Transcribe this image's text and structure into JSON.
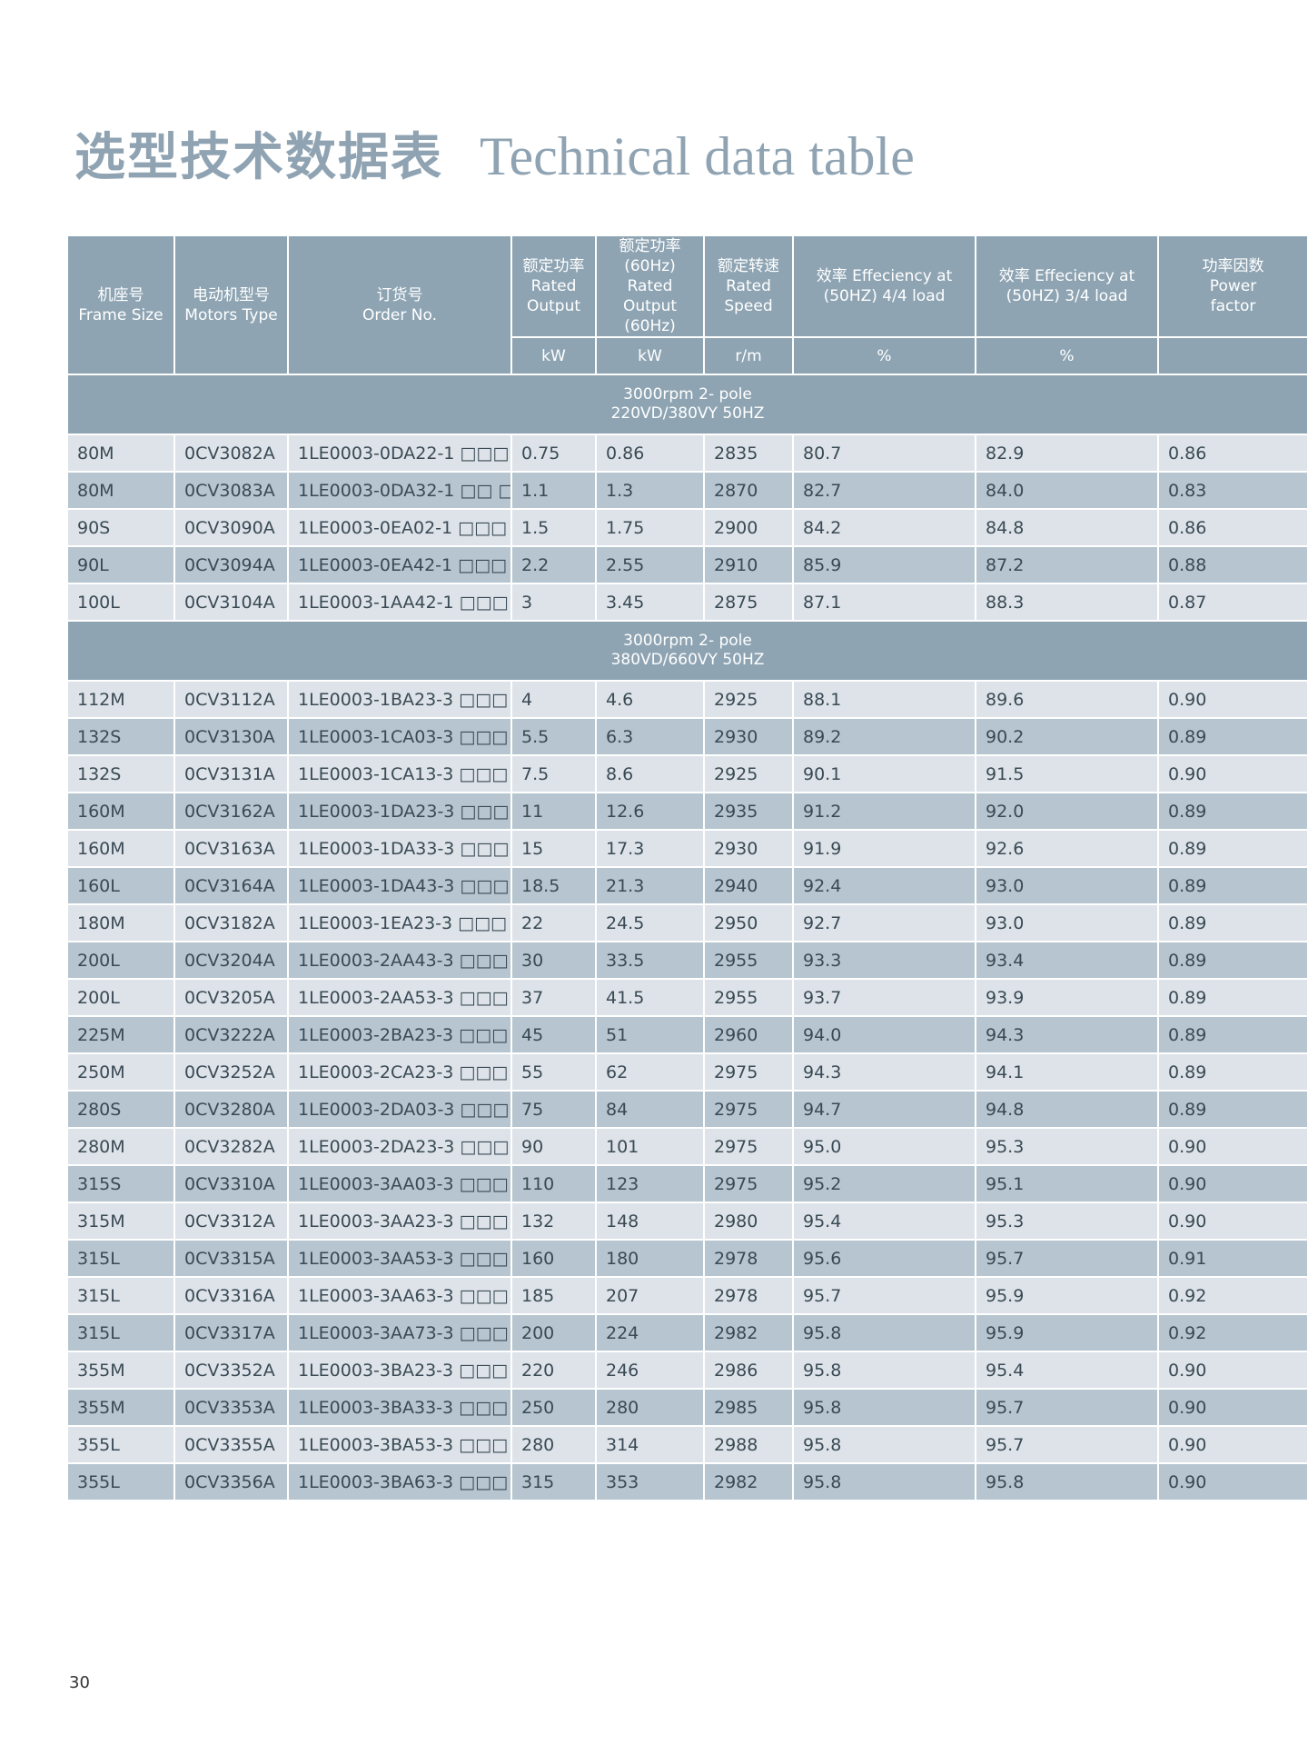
{
  "title": {
    "zh": "选型技术数据表",
    "en": "Technical data table"
  },
  "table": {
    "header": [
      "机座号\nFrame Size",
      "电动机型号\nMotors Type",
      "订货号\nOrder No.",
      "额定功率\nRated\nOutput",
      "额定功率\n(60Hz)\nRated Output\n(60Hz)",
      "额定转速\nRated\nSpeed",
      "效率 Effeciency at\n(50HZ) 4/4 load",
      "效率 Effeciency at\n(50HZ) 3/4 load",
      "功率因数\nPower\nfactor"
    ],
    "units": [
      "kW",
      "kW",
      "r/m",
      "%",
      "%"
    ],
    "sections": [
      {
        "title": "3000rpm 2- pole\n220VD/380VY  50HZ",
        "rows": [
          [
            "80M",
            "0CV3082A",
            "1LE0003-0DA22-1 □□□",
            "0.75",
            "0.86",
            "2835",
            "80.7",
            "82.9",
            "0.86"
          ],
          [
            "80M",
            "0CV3083A",
            "1LE0003-0DA32-1 □□ □",
            "1.1",
            "1.3",
            "2870",
            "82.7",
            "84.0",
            "0.83"
          ],
          [
            "90S",
            "0CV3090A",
            "1LE0003-0EA02-1 □□□",
            "1.5",
            "1.75",
            "2900",
            "84.2",
            "84.8",
            "0.86"
          ],
          [
            "90L",
            "0CV3094A",
            "1LE0003-0EA42-1 □□□",
            "2.2",
            "2.55",
            "2910",
            "85.9",
            "87.2",
            "0.88"
          ],
          [
            "100L",
            "0CV3104A",
            "1LE0003-1AA42-1 □□□",
            "3",
            "3.45",
            "2875",
            "87.1",
            "88.3",
            "0.87"
          ]
        ]
      },
      {
        "title": "3000rpm 2- pole\n380VD/660VY  50HZ",
        "rows": [
          [
            "112M",
            "0CV3112A",
            "1LE0003-1BA23-3 □□□",
            "4",
            "4.6",
            "2925",
            "88.1",
            "89.6",
            "0.90"
          ],
          [
            "132S",
            "0CV3130A",
            "1LE0003-1CA03-3 □□□",
            "5.5",
            "6.3",
            "2930",
            "89.2",
            "90.2",
            "0.89"
          ],
          [
            "132S",
            "0CV3131A",
            "1LE0003-1CA13-3 □□□",
            "7.5",
            "8.6",
            "2925",
            "90.1",
            "91.5",
            "0.90"
          ],
          [
            "160M",
            "0CV3162A",
            "1LE0003-1DA23-3 □□□",
            "11",
            "12.6",
            "2935",
            "91.2",
            "92.0",
            "0.89"
          ],
          [
            "160M",
            "0CV3163A",
            "1LE0003-1DA33-3 □□□",
            "15",
            "17.3",
            "2930",
            "91.9",
            "92.6",
            "0.89"
          ],
          [
            "160L",
            "0CV3164A",
            "1LE0003-1DA43-3 □□□",
            "18.5",
            "21.3",
            "2940",
            "92.4",
            "93.0",
            "0.89"
          ],
          [
            "180M",
            "0CV3182A",
            "1LE0003-1EA23-3 □□□",
            "22",
            "24.5",
            "2950",
            "92.7",
            "93.0",
            "0.89"
          ],
          [
            "200L",
            "0CV3204A",
            "1LE0003-2AA43-3 □□□",
            "30",
            "33.5",
            "2955",
            "93.3",
            "93.4",
            "0.89"
          ],
          [
            "200L",
            "0CV3205A",
            "1LE0003-2AA53-3 □□□",
            "37",
            "41.5",
            "2955",
            "93.7",
            "93.9",
            "0.89"
          ],
          [
            "225M",
            "0CV3222A",
            "1LE0003-2BA23-3 □□□",
            "45",
            "51",
            "2960",
            "94.0",
            "94.3",
            "0.89"
          ],
          [
            "250M",
            "0CV3252A",
            "1LE0003-2CA23-3 □□□",
            "55",
            "62",
            "2975",
            "94.3",
            "94.1",
            "0.89"
          ],
          [
            "280S",
            "0CV3280A",
            "1LE0003-2DA03-3 □□□",
            "75",
            "84",
            "2975",
            "94.7",
            "94.8",
            "0.89"
          ],
          [
            "280M",
            "0CV3282A",
            "1LE0003-2DA23-3 □□□",
            "90",
            "101",
            "2975",
            "95.0",
            "95.3",
            "0.90"
          ],
          [
            "315S",
            "0CV3310A",
            "1LE0003-3AA03-3 □□□",
            "110",
            "123",
            "2975",
            "95.2",
            "95.1",
            "0.90"
          ],
          [
            "315M",
            "0CV3312A",
            "1LE0003-3AA23-3 □□□",
            "132",
            "148",
            "2980",
            "95.4",
            "95.3",
            "0.90"
          ],
          [
            "315L",
            "0CV3315A",
            "1LE0003-3AA53-3 □□□",
            "160",
            "180",
            "2978",
            "95.6",
            "95.7",
            "0.91"
          ],
          [
            "315L",
            "0CV3316A",
            "1LE0003-3AA63-3 □□□",
            "185",
            "207",
            "2978",
            "95.7",
            "95.9",
            "0.92"
          ],
          [
            "315L",
            "0CV3317A",
            "1LE0003-3AA73-3 □□□",
            "200",
            "224",
            "2982",
            "95.8",
            "95.9",
            "0.92"
          ],
          [
            "355M",
            "0CV3352A",
            "1LE0003-3BA23-3 □□□",
            "220",
            "246",
            "2986",
            "95.8",
            "95.4",
            "0.90"
          ],
          [
            "355M",
            "0CV3353A",
            "1LE0003-3BA33-3 □□□",
            "250",
            "280",
            "2985",
            "95.8",
            "95.7",
            "0.90"
          ],
          [
            "355L",
            "0CV3355A",
            "1LE0003-3BA53-3 □□□",
            "280",
            "314",
            "2988",
            "95.8",
            "95.7",
            "0.90"
          ],
          [
            "355L",
            "0CV3356A",
            "1LE0003-3BA63-3 □□□",
            "315",
            "353",
            "2982",
            "95.8",
            "95.8",
            "0.90"
          ]
        ]
      }
    ]
  },
  "page_number": "30"
}
